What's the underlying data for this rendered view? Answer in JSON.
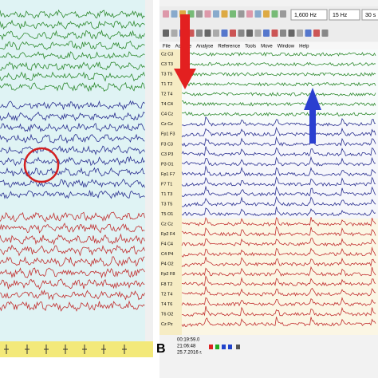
{
  "panel_b": {
    "label": "B",
    "toolbar": {
      "sampling": "1,600 Hz",
      "filter": "15 Hz",
      "timebase": "30 s"
    },
    "menu": [
      "File",
      "Acquire",
      "Analyse",
      "Reference",
      "Tools",
      "Move",
      "Window",
      "Help"
    ],
    "channels": [
      "Cz C3",
      "C3 T3",
      "T3 T5",
      "T1 T2",
      "T2 T4",
      "T4 C4",
      "C4 Cz",
      "Cz Cz",
      "Fp1 F3",
      "F3 C3",
      "C3 P3",
      "P3 O1",
      "Fp1 F7",
      "F7 T1",
      "T1 T3",
      "T3 T5",
      "T5 O1",
      "Cz Cz",
      "Fp2 F4",
      "F4 C4",
      "C4 P4",
      "P4 O2",
      "Fp2 F8",
      "F8 T2",
      "T2 T4",
      "T4 T6",
      "T6 O2",
      "Cz Pz"
    ],
    "status": {
      "time": "00:19:59.0",
      "clock": "21:06:48",
      "date": "25.7.2016 г."
    }
  }
}
